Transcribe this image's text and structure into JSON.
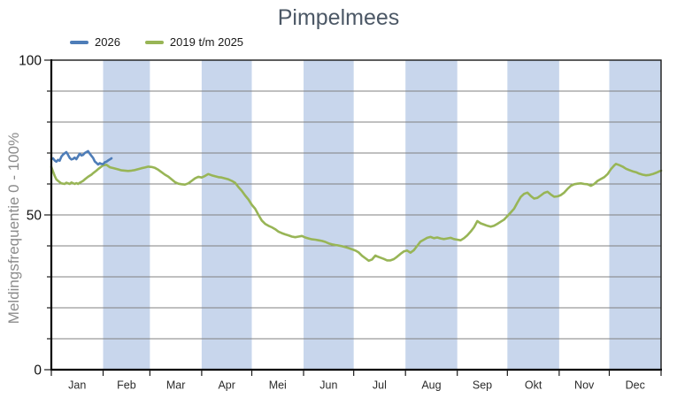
{
  "chart_data": {
    "type": "line",
    "title": "Pimpelmees",
    "title_color": "#4c5866",
    "ylabel": "Meldingsfrequentie 0 - 100%",
    "ylabel_color": "#8c8c8c",
    "ylim": [
      0,
      100
    ],
    "ytick_interval": 10,
    "ytick_labeled": [
      0,
      50,
      100
    ],
    "xlabels": [
      "Jan",
      "Feb",
      "Mar",
      "Apr",
      "Mei",
      "Jun",
      "Jul",
      "Aug",
      "Sep",
      "Okt",
      "Nov",
      "Dec"
    ],
    "month_lengths": [
      31,
      28,
      31,
      30,
      31,
      30,
      31,
      31,
      30,
      31,
      30,
      31
    ],
    "shaded_month_indices": [
      1,
      3,
      5,
      7,
      9,
      11
    ],
    "band_color": "#c8d6ec",
    "grid_color": "#808080",
    "axis_color": "#1a1a1a",
    "tick_label_color": "#111111",
    "month_label_color": "#2b2b2b",
    "grid": true,
    "legend_position": "top-left",
    "x_unit": "day_of_year",
    "series": [
      {
        "name": "2026",
        "color": "#4e7db8",
        "points": [
          [
            0,
            68.0
          ],
          [
            1,
            68.3
          ],
          [
            2,
            67.6
          ],
          [
            3,
            67.2
          ],
          [
            4,
            67.8
          ],
          [
            5,
            67.5
          ],
          [
            6,
            68.8
          ],
          [
            7,
            69.5
          ],
          [
            8,
            69.9
          ],
          [
            9,
            70.3
          ],
          [
            10,
            69.4
          ],
          [
            11,
            68.4
          ],
          [
            12,
            67.9
          ],
          [
            13,
            68.1
          ],
          [
            14,
            68.5
          ],
          [
            15,
            68.0
          ],
          [
            16,
            68.9
          ],
          [
            17,
            69.8
          ],
          [
            18,
            69.2
          ],
          [
            19,
            69.4
          ],
          [
            20,
            70.0
          ],
          [
            21,
            70.3
          ],
          [
            22,
            70.6
          ],
          [
            23,
            69.8
          ],
          [
            24,
            69.1
          ],
          [
            25,
            68.4
          ],
          [
            26,
            67.3
          ],
          [
            27,
            66.8
          ],
          [
            28,
            66.3
          ],
          [
            29,
            66.7
          ],
          [
            30,
            66.5
          ],
          [
            31,
            66.4
          ],
          [
            32,
            67.0
          ],
          [
            33,
            67.2
          ],
          [
            34,
            67.6
          ],
          [
            35,
            67.9
          ],
          [
            36,
            68.3
          ]
        ]
      },
      {
        "name": "2019 t/m 2025",
        "color": "#98b556",
        "points": [
          [
            0,
            65.5
          ],
          [
            1,
            64.0
          ],
          [
            2,
            62.6
          ],
          [
            3,
            61.5
          ],
          [
            4,
            61.0
          ],
          [
            5,
            60.6
          ],
          [
            6,
            60.2
          ],
          [
            8,
            60.0
          ],
          [
            9,
            60.4
          ],
          [
            11,
            60.0
          ],
          [
            12,
            60.5
          ],
          [
            14,
            60.0
          ],
          [
            15,
            60.3
          ],
          [
            16,
            60.0
          ],
          [
            17,
            60.4
          ],
          [
            19,
            61.0
          ],
          [
            20,
            61.5
          ],
          [
            22,
            62.3
          ],
          [
            24,
            63.0
          ],
          [
            25,
            63.5
          ],
          [
            27,
            64.3
          ],
          [
            28,
            64.8
          ],
          [
            30,
            65.6
          ],
          [
            31,
            66.0
          ],
          [
            33,
            66.2
          ],
          [
            35,
            65.4
          ],
          [
            38,
            65.0
          ],
          [
            40,
            64.7
          ],
          [
            42,
            64.4
          ],
          [
            44,
            64.3
          ],
          [
            46,
            64.2
          ],
          [
            48,
            64.3
          ],
          [
            50,
            64.5
          ],
          [
            52,
            64.8
          ],
          [
            54,
            65.1
          ],
          [
            56,
            65.3
          ],
          [
            58,
            65.6
          ],
          [
            60,
            65.5
          ],
          [
            62,
            65.2
          ],
          [
            64,
            64.6
          ],
          [
            66,
            63.8
          ],
          [
            68,
            63.0
          ],
          [
            70,
            62.4
          ],
          [
            72,
            61.5
          ],
          [
            74,
            60.6
          ],
          [
            76,
            60.1
          ],
          [
            78,
            59.9
          ],
          [
            80,
            59.8
          ],
          [
            82,
            60.2
          ],
          [
            84,
            61.0
          ],
          [
            86,
            61.8
          ],
          [
            88,
            62.3
          ],
          [
            90,
            62.1
          ],
          [
            92,
            62.6
          ],
          [
            94,
            63.2
          ],
          [
            96,
            62.8
          ],
          [
            98,
            62.5
          ],
          [
            100,
            62.2
          ],
          [
            102,
            62.1
          ],
          [
            104,
            61.8
          ],
          [
            106,
            61.5
          ],
          [
            108,
            61.0
          ],
          [
            110,
            60.4
          ],
          [
            112,
            59.0
          ],
          [
            114,
            57.8
          ],
          [
            116,
            56.3
          ],
          [
            118,
            55.0
          ],
          [
            120,
            53.3
          ],
          [
            122,
            52.0
          ],
          [
            124,
            50.0
          ],
          [
            126,
            48.2
          ],
          [
            128,
            47.1
          ],
          [
            130,
            46.5
          ],
          [
            132,
            46.0
          ],
          [
            134,
            45.4
          ],
          [
            136,
            44.6
          ],
          [
            138,
            44.1
          ],
          [
            140,
            43.7
          ],
          [
            142,
            43.4
          ],
          [
            144,
            43.0
          ],
          [
            146,
            42.8
          ],
          [
            148,
            43.0
          ],
          [
            150,
            43.2
          ],
          [
            152,
            42.7
          ],
          [
            154,
            42.4
          ],
          [
            156,
            42.1
          ],
          [
            158,
            42.0
          ],
          [
            160,
            41.8
          ],
          [
            162,
            41.6
          ],
          [
            164,
            41.3
          ],
          [
            166,
            40.8
          ],
          [
            168,
            40.5
          ],
          [
            170,
            40.3
          ],
          [
            172,
            40.1
          ],
          [
            174,
            39.9
          ],
          [
            176,
            39.6
          ],
          [
            178,
            39.3
          ],
          [
            180,
            38.9
          ],
          [
            182,
            38.5
          ],
          [
            184,
            37.9
          ],
          [
            186,
            36.8
          ],
          [
            188,
            36.0
          ],
          [
            190,
            35.2
          ],
          [
            192,
            35.6
          ],
          [
            194,
            36.9
          ],
          [
            195,
            36.6
          ],
          [
            197,
            36.2
          ],
          [
            199,
            35.8
          ],
          [
            201,
            35.3
          ],
          [
            203,
            35.3
          ],
          [
            205,
            35.7
          ],
          [
            207,
            36.5
          ],
          [
            209,
            37.4
          ],
          [
            211,
            38.2
          ],
          [
            213,
            38.5
          ],
          [
            215,
            37.8
          ],
          [
            217,
            38.6
          ],
          [
            219,
            40.0
          ],
          [
            221,
            41.4
          ],
          [
            223,
            42.0
          ],
          [
            225,
            42.6
          ],
          [
            227,
            42.9
          ],
          [
            229,
            42.5
          ],
          [
            231,
            42.7
          ],
          [
            233,
            42.4
          ],
          [
            235,
            42.2
          ],
          [
            237,
            42.4
          ],
          [
            239,
            42.6
          ],
          [
            241,
            42.2
          ],
          [
            243,
            42.0
          ],
          [
            245,
            41.8
          ],
          [
            247,
            42.5
          ],
          [
            249,
            43.4
          ],
          [
            251,
            44.6
          ],
          [
            253,
            46.0
          ],
          [
            255,
            48.0
          ],
          [
            257,
            47.3
          ],
          [
            259,
            46.9
          ],
          [
            261,
            46.5
          ],
          [
            263,
            46.2
          ],
          [
            265,
            46.5
          ],
          [
            267,
            47.1
          ],
          [
            269,
            47.8
          ],
          [
            271,
            48.5
          ],
          [
            273,
            49.6
          ],
          [
            275,
            50.8
          ],
          [
            277,
            52.0
          ],
          [
            279,
            54.0
          ],
          [
            281,
            55.8
          ],
          [
            283,
            56.8
          ],
          [
            285,
            57.2
          ],
          [
            287,
            56.1
          ],
          [
            289,
            55.3
          ],
          [
            291,
            55.5
          ],
          [
            293,
            56.3
          ],
          [
            295,
            57.1
          ],
          [
            297,
            57.5
          ],
          [
            299,
            56.6
          ],
          [
            301,
            55.9
          ],
          [
            303,
            56.0
          ],
          [
            305,
            56.4
          ],
          [
            307,
            57.2
          ],
          [
            309,
            58.4
          ],
          [
            311,
            59.4
          ],
          [
            313,
            59.9
          ],
          [
            315,
            60.1
          ],
          [
            317,
            60.2
          ],
          [
            319,
            60.0
          ],
          [
            321,
            59.9
          ],
          [
            323,
            59.4
          ],
          [
            325,
            60.0
          ],
          [
            327,
            61.0
          ],
          [
            329,
            61.6
          ],
          [
            331,
            62.2
          ],
          [
            333,
            63.2
          ],
          [
            335,
            64.8
          ],
          [
            337,
            66.0
          ],
          [
            338,
            66.5
          ],
          [
            340,
            66.1
          ],
          [
            342,
            65.6
          ],
          [
            344,
            64.9
          ],
          [
            346,
            64.5
          ],
          [
            348,
            64.1
          ],
          [
            350,
            63.8
          ],
          [
            352,
            63.3
          ],
          [
            354,
            63.0
          ],
          [
            356,
            62.8
          ],
          [
            358,
            62.9
          ],
          [
            360,
            63.2
          ],
          [
            362,
            63.6
          ],
          [
            364,
            64.1
          ],
          [
            365,
            64.3
          ]
        ]
      }
    ]
  }
}
